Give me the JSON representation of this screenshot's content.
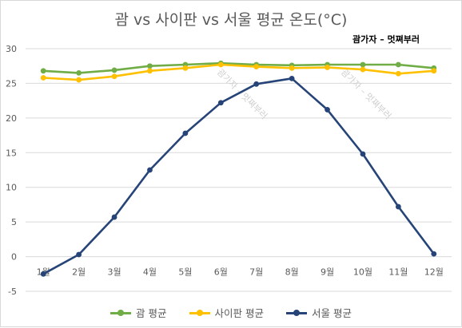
{
  "chart_data": {
    "type": "line",
    "title": "괌 vs 사이판 vs 서울 평균 온도(°C)",
    "categories": [
      "1월",
      "2월",
      "3월",
      "4월",
      "5월",
      "6월",
      "7월",
      "8월",
      "9월",
      "10월",
      "11월",
      "12월"
    ],
    "series": [
      {
        "name": "괌 평균",
        "color": "#70ad47",
        "values": [
          26.8,
          26.5,
          26.9,
          27.5,
          27.7,
          27.9,
          27.7,
          27.6,
          27.7,
          27.7,
          27.7,
          27.2
        ]
      },
      {
        "name": "사이판 평균",
        "color": "#ffc000",
        "values": [
          25.8,
          25.5,
          26.0,
          26.8,
          27.2,
          27.7,
          27.4,
          27.2,
          27.3,
          27.0,
          26.4,
          26.8
        ]
      },
      {
        "name": "서울 평균",
        "color": "#264478",
        "values": [
          -2.5,
          0.3,
          5.7,
          12.5,
          17.8,
          22.2,
          24.9,
          25.7,
          21.2,
          14.8,
          7.2,
          0.4
        ]
      }
    ],
    "ylim": [
      -5,
      30
    ],
    "yticks": [
      -5,
      0,
      5,
      10,
      15,
      20,
      25,
      30
    ],
    "grid": true,
    "legend": "bottom",
    "watermarks": [
      "괌가자 – 멋쪄부러",
      "괌가자 – 멋쪄부러",
      "괌가자 – 멋쪄부러"
    ]
  }
}
